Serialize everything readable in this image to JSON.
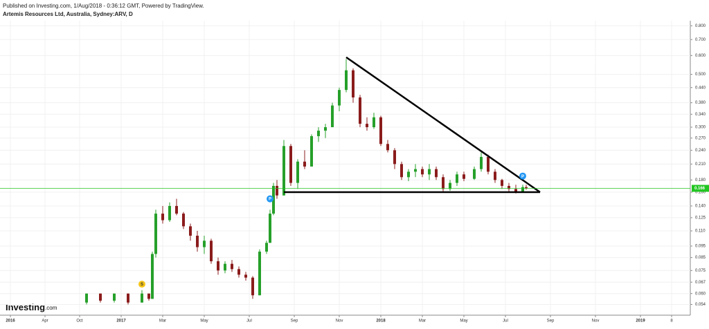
{
  "header": {
    "published": "Published on Investing.com, 1/Aug/2018 - 0:36:12 GMT, Powered by TradingView.",
    "instrument": "Artemis Resources Ltd, Australia, Sydney:ARV, D"
  },
  "logo": {
    "main": "Investing",
    "suffix": ".com"
  },
  "chart_data": {
    "type": "candlestick",
    "log_scale": true,
    "grid": true,
    "up_color": "#26a02a",
    "down_color": "#8b1c1c",
    "xlim": [
      0,
      197
    ],
    "xticks": [
      {
        "value": 3,
        "label": "2016"
      },
      {
        "value": 13,
        "label": "Apr"
      },
      {
        "value": 23,
        "label": "Oct"
      },
      {
        "value": 35,
        "label": "2017"
      },
      {
        "value": 47,
        "label": "Mar"
      },
      {
        "value": 59,
        "label": "May"
      },
      {
        "value": 72,
        "label": "Jul"
      },
      {
        "value": 85,
        "label": "Sep"
      },
      {
        "value": 98,
        "label": "Nov"
      },
      {
        "value": 110,
        "label": "2018"
      },
      {
        "value": 122,
        "label": "Mar"
      },
      {
        "value": 134,
        "label": "May"
      },
      {
        "value": 146,
        "label": "Jul"
      },
      {
        "value": 159,
        "label": "Sep"
      },
      {
        "value": 172,
        "label": "Nov"
      },
      {
        "value": 185,
        "label": "2019"
      },
      {
        "value": 194,
        "label": "8"
      }
    ],
    "ylim": [
      0.049,
      0.84
    ],
    "yticks": [
      0.054,
      {
        "value": 0.06,
        "label": "0.060"
      },
      0.067,
      0.075,
      0.085,
      0.095,
      {
        "value": 0.11,
        "label": "0.110"
      },
      0.125,
      {
        "value": 0.14,
        "label": "0.140"
      },
      {
        "value": 0.16,
        "label": "0.160"
      },
      {
        "value": 0.18,
        "label": "0.180"
      },
      {
        "value": 0.21,
        "label": "0.210"
      },
      {
        "value": 0.24,
        "label": "0.240"
      },
      {
        "value": 0.27,
        "label": "0.270"
      },
      {
        "value": 0.3,
        "label": "0.300"
      },
      {
        "value": 0.34,
        "label": "0.340"
      },
      {
        "value": 0.38,
        "label": "0.380"
      },
      {
        "value": 0.44,
        "label": "0.440"
      },
      {
        "value": 0.5,
        "label": "0.500"
      },
      {
        "value": 0.6,
        "label": "0.600"
      },
      {
        "value": 0.7,
        "label": "0.700"
      },
      {
        "value": 0.8,
        "label": "0.800"
      }
    ],
    "x": [
      25,
      29,
      33,
      37,
      41,
      43,
      44,
      45,
      47,
      49,
      51,
      53,
      55,
      57,
      59,
      61,
      63,
      65,
      67,
      69,
      71,
      73,
      75,
      77,
      78,
      79,
      80,
      82,
      84,
      86,
      88,
      90,
      92,
      94,
      96,
      98,
      100,
      102,
      104,
      106,
      108,
      110,
      112,
      114,
      116,
      118,
      120,
      122,
      124,
      126,
      128,
      130,
      132,
      134,
      137,
      139,
      141,
      143,
      145,
      147,
      149,
      151,
      152
    ],
    "open": [
      0.055,
      0.06,
      0.056,
      0.06,
      0.055,
      0.06,
      0.057,
      0.088,
      0.13,
      0.122,
      0.14,
      0.13,
      0.115,
      0.105,
      0.094,
      0.1,
      0.082,
      0.075,
      0.08,
      0.076,
      0.072,
      0.07,
      0.059,
      0.09,
      0.098,
      0.13,
      0.17,
      0.155,
      0.25,
      0.175,
      0.215,
      0.205,
      0.275,
      0.29,
      0.3,
      0.37,
      0.43,
      0.52,
      0.4,
      0.31,
      0.3,
      0.33,
      0.255,
      0.24,
      0.21,
      0.185,
      0.195,
      0.2,
      0.19,
      0.2,
      0.185,
      0.165,
      0.175,
      0.19,
      0.182,
      0.2,
      0.225,
      0.195,
      0.18,
      0.17,
      0.165,
      0.16,
      0.168
    ],
    "high": [
      0.06,
      0.06,
      0.06,
      0.06,
      0.062,
      0.06,
      0.09,
      0.135,
      0.14,
      0.145,
      0.15,
      0.132,
      0.118,
      0.11,
      0.105,
      0.102,
      0.085,
      0.082,
      0.083,
      0.078,
      0.074,
      0.071,
      0.092,
      0.1,
      0.135,
      0.175,
      0.18,
      0.265,
      0.255,
      0.22,
      0.24,
      0.28,
      0.3,
      0.31,
      0.38,
      0.44,
      0.58,
      0.53,
      0.41,
      0.33,
      0.345,
      0.335,
      0.265,
      0.245,
      0.215,
      0.2,
      0.21,
      0.205,
      0.21,
      0.205,
      0.19,
      0.18,
      0.195,
      0.195,
      0.205,
      0.235,
      0.23,
      0.2,
      0.182,
      0.175,
      0.172,
      0.172,
      0.172
    ],
    "low": [
      0.054,
      0.055,
      0.055,
      0.054,
      0.055,
      0.056,
      0.057,
      0.085,
      0.118,
      0.12,
      0.128,
      0.112,
      0.1,
      0.09,
      0.088,
      0.08,
      0.072,
      0.073,
      0.074,
      0.07,
      0.068,
      0.057,
      0.059,
      0.088,
      0.098,
      0.128,
      0.15,
      0.155,
      0.17,
      0.165,
      0.2,
      0.205,
      0.26,
      0.27,
      0.3,
      0.35,
      0.42,
      0.38,
      0.3,
      0.29,
      0.295,
      0.25,
      0.235,
      0.2,
      0.18,
      0.178,
      0.185,
      0.185,
      0.18,
      0.18,
      0.16,
      0.162,
      0.17,
      0.178,
      0.18,
      0.195,
      0.19,
      0.175,
      0.165,
      0.16,
      0.158,
      0.16,
      0.164
    ],
    "close": [
      0.06,
      0.056,
      0.06,
      0.055,
      0.06,
      0.057,
      0.088,
      0.13,
      0.122,
      0.14,
      0.13,
      0.115,
      0.105,
      0.094,
      0.1,
      0.082,
      0.075,
      0.08,
      0.076,
      0.072,
      0.07,
      0.059,
      0.09,
      0.098,
      0.13,
      0.17,
      0.155,
      0.25,
      0.175,
      0.215,
      0.205,
      0.275,
      0.29,
      0.3,
      0.37,
      0.43,
      0.52,
      0.4,
      0.31,
      0.3,
      0.33,
      0.255,
      0.24,
      0.21,
      0.185,
      0.195,
      0.2,
      0.19,
      0.2,
      0.185,
      0.165,
      0.175,
      0.19,
      0.182,
      0.2,
      0.225,
      0.195,
      0.18,
      0.17,
      0.165,
      0.16,
      0.168,
      0.166
    ],
    "trendlines": [
      {
        "x": [
          100,
          156
        ],
        "y": [
          0.59,
          0.16
        ]
      },
      {
        "x": [
          82,
          156
        ],
        "y": [
          0.16,
          0.16
        ]
      }
    ],
    "last_price": {
      "value": 0.166,
      "label": "0.166",
      "color": "#22c622"
    },
    "markers": [
      {
        "x": 41,
        "y": 0.0657,
        "label": "S",
        "color": "#f5c518"
      },
      {
        "x": 78,
        "y": 0.15,
        "label": "P",
        "color": "#2196f3"
      },
      {
        "x": 151,
        "y": 0.187,
        "label": "P",
        "color": "#2196f3"
      }
    ]
  }
}
